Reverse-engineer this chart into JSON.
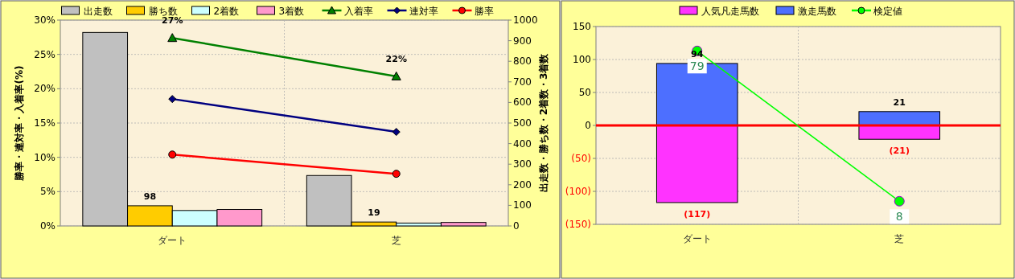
{
  "chart_data": [
    {
      "type": "bar",
      "categories": [
        "ダート",
        "芝"
      ],
      "ylabel": "勝率・連対率・入着率(%)",
      "y2label": "出走数・勝ち数・2着数・3着数",
      "ylim": [
        0,
        30
      ],
      "yticks": [
        {
          "value": 0,
          "label": "0%"
        },
        {
          "value": 5,
          "label": "5%"
        },
        {
          "value": 10,
          "label": "10%"
        },
        {
          "value": 15,
          "label": "15%"
        },
        {
          "value": 20,
          "label": "20%"
        },
        {
          "value": 25,
          "label": "25%"
        },
        {
          "value": 30,
          "label": "30%"
        }
      ],
      "y2lim": [
        0,
        1000
      ],
      "y2ticks": [
        0,
        100,
        200,
        300,
        400,
        500,
        600,
        700,
        800,
        900,
        1000
      ],
      "grid": true,
      "legend": "top",
      "series": [
        {
          "name": "出走数",
          "axis": "y2",
          "color": "#c0c0c0",
          "values": [
            940,
            245
          ]
        },
        {
          "name": "勝ち数",
          "axis": "y2",
          "color": "#ffcc00",
          "values": [
            98,
            19
          ],
          "value_labels": [
            "98",
            "19"
          ]
        },
        {
          "name": "2着数",
          "axis": "y2",
          "color": "#ccffff",
          "values": [
            75,
            14
          ]
        },
        {
          "name": "3着数",
          "axis": "y2",
          "color": "#ff99cc",
          "values": [
            80,
            17
          ]
        },
        {
          "name": "入着率",
          "type": "line",
          "color": "#008000",
          "marker": "triangle",
          "values": [
            27.4,
            21.8
          ],
          "value_labels": [
            "27%",
            "22%"
          ]
        },
        {
          "name": "連対率",
          "type": "line",
          "color": "#000080",
          "marker": "diamond",
          "values": [
            18.5,
            13.7
          ]
        },
        {
          "name": "勝率",
          "type": "line",
          "color": "#ff0000",
          "marker": "circle",
          "values": [
            10.4,
            7.6
          ]
        }
      ]
    },
    {
      "type": "bar",
      "categories": [
        "ダート",
        "芝"
      ],
      "stacked": true,
      "ylim": [
        -150,
        150
      ],
      "yticks": [
        {
          "value": -150,
          "label": "(150)"
        },
        {
          "value": -100,
          "label": "(100)"
        },
        {
          "value": -50,
          "label": "(50)"
        },
        0,
        50,
        100,
        150
      ],
      "y2lim": [
        -2.9,
        90.5
      ],
      "grid": true,
      "legend": "top",
      "ref_lines": [
        {
          "axis": "y",
          "value": 0,
          "color": "#ff0000"
        }
      ],
      "series": [
        {
          "name": "人気凡走馬数",
          "color": "#ff33ff",
          "values": [
            -117,
            -21
          ],
          "value_labels": [
            "(117)",
            "(21)"
          ]
        },
        {
          "name": "激走馬数",
          "color": "#4d6fff",
          "values": [
            94,
            21
          ],
          "value_labels": [
            "94",
            "21"
          ]
        },
        {
          "name": "検定値",
          "type": "line",
          "axis": "y2",
          "color": "#00ff00",
          "marker": "circle",
          "values": [
            79,
            8
          ],
          "value_labels": [
            "79",
            "8"
          ]
        }
      ]
    }
  ]
}
